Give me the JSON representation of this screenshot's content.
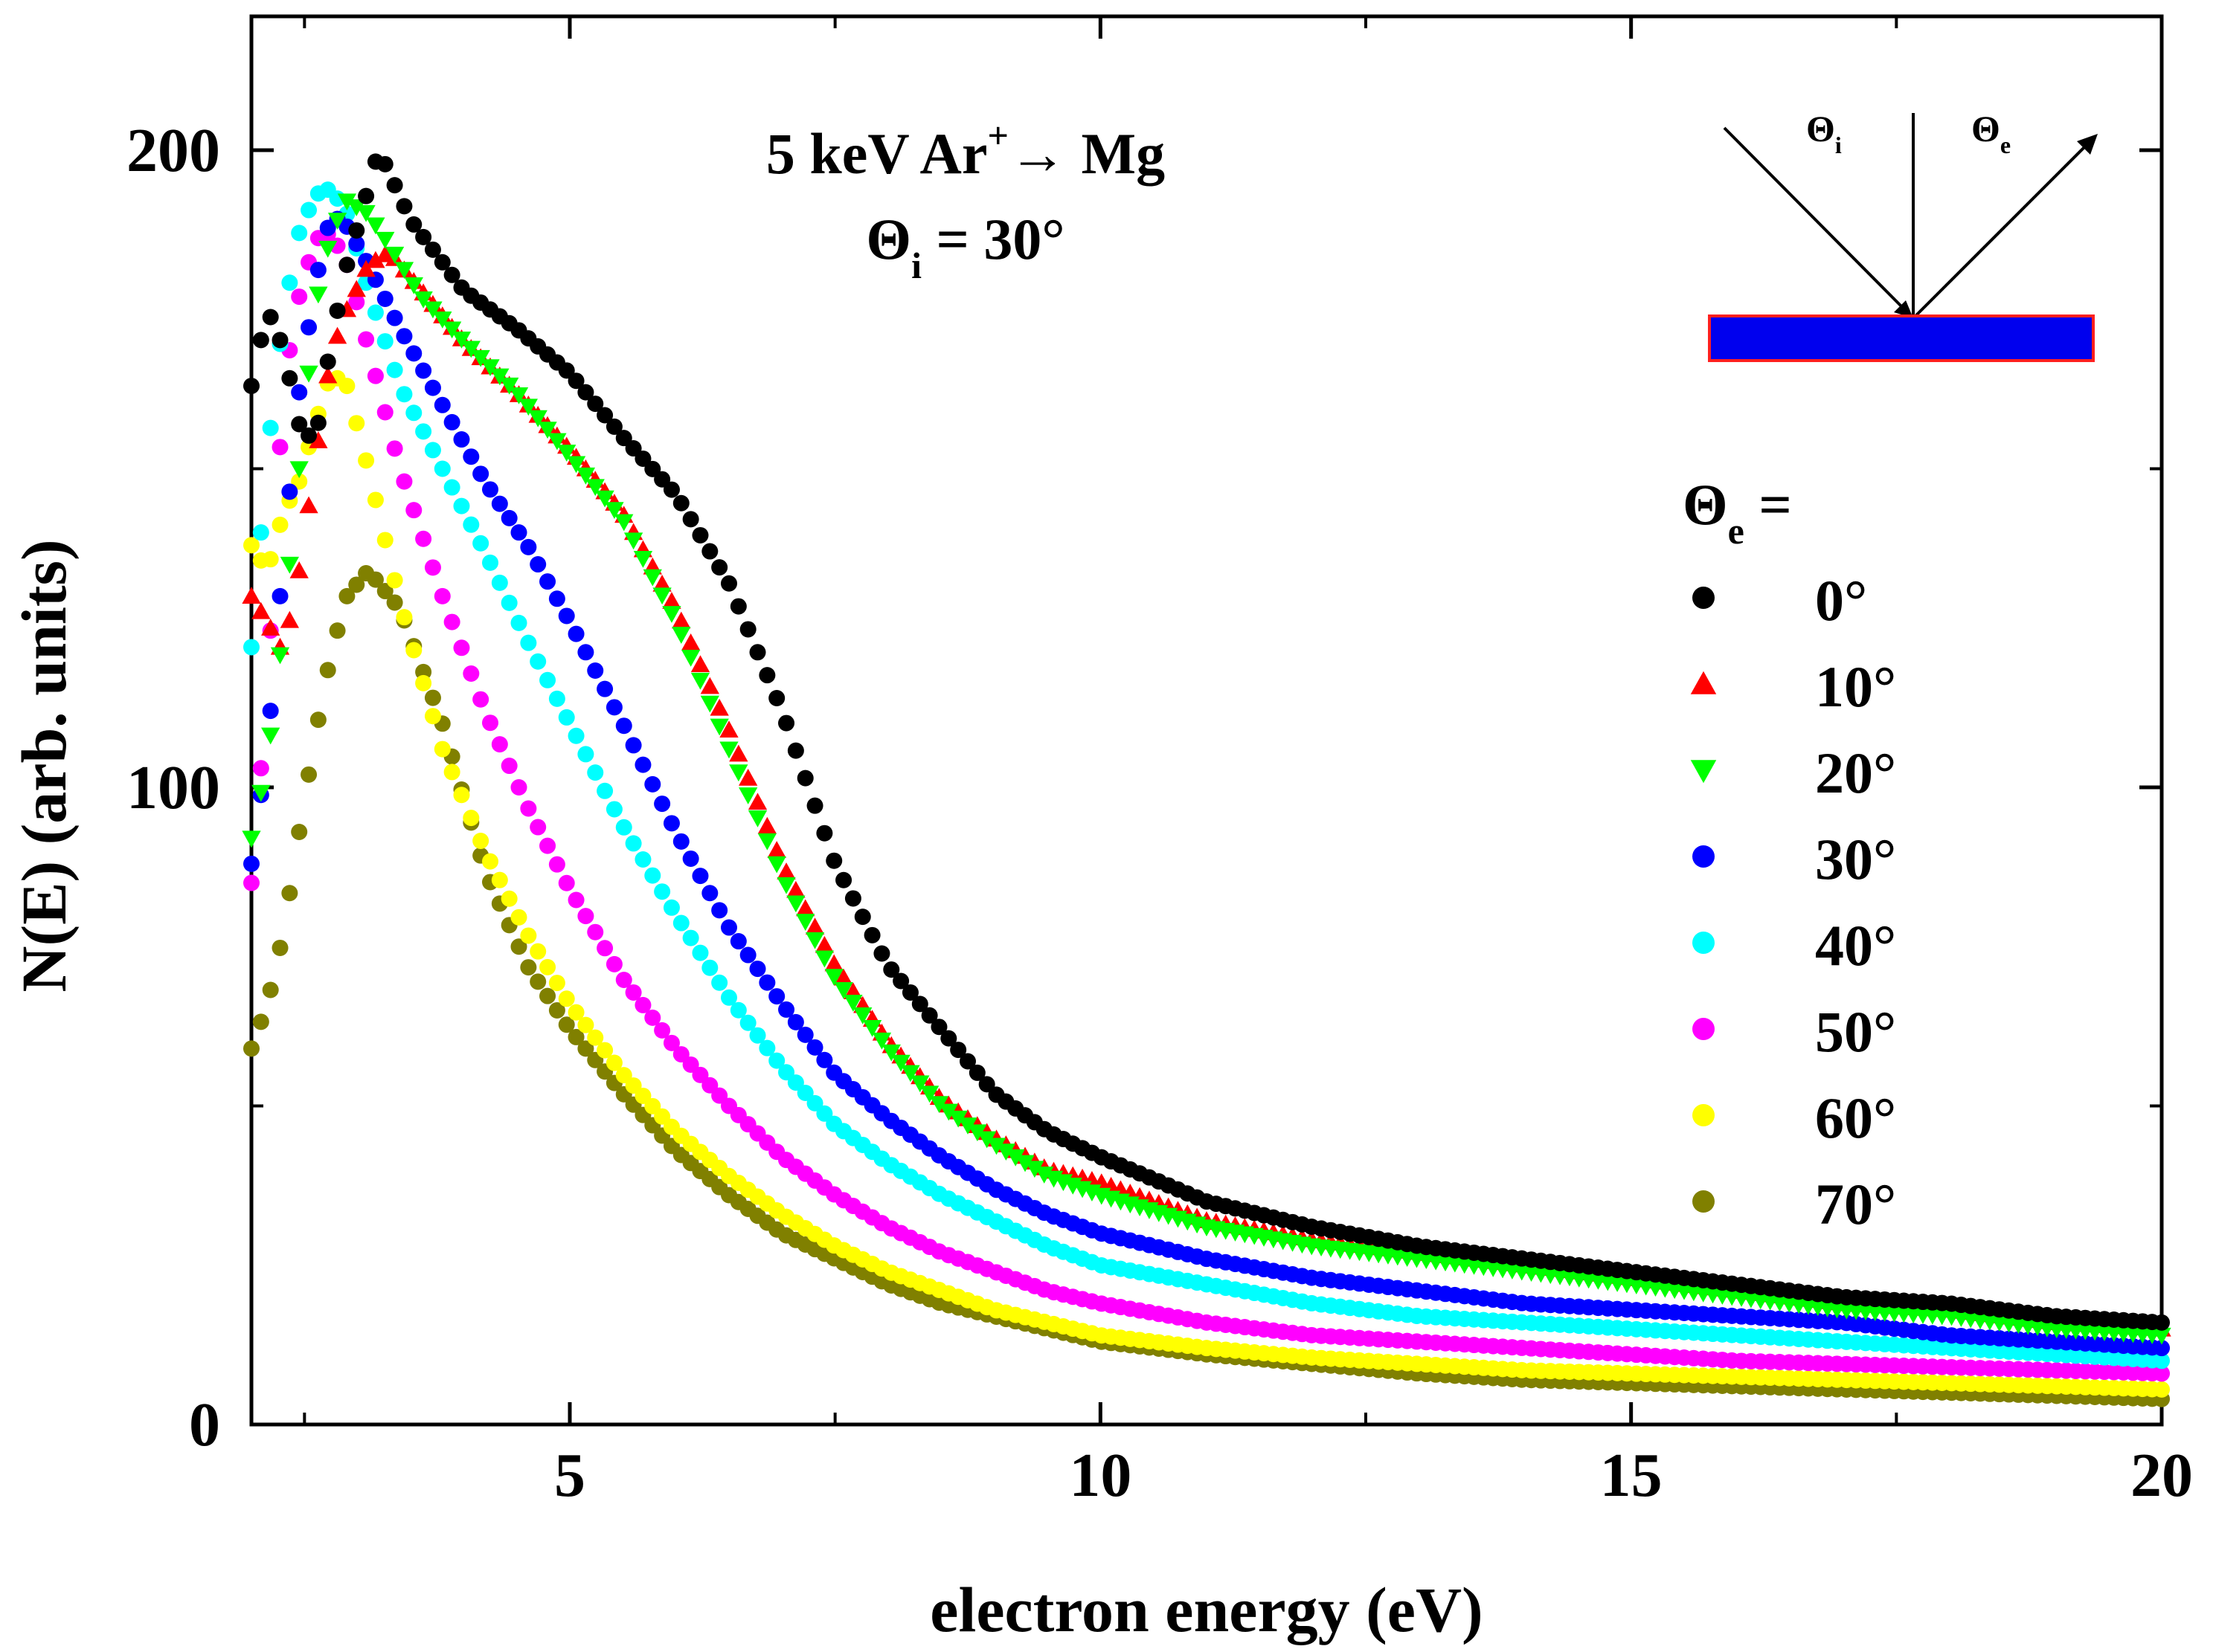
{
  "chart_data": {
    "type": "scatter",
    "title": "",
    "annotation": {
      "line1_pre": "5 keV Ar",
      "line1_sup": "+",
      "line1_post": "→ Mg",
      "line2_sym": "Θ",
      "line2_sub": "i",
      "line2_post": " = 30°"
    },
    "xlabel": "electron energy (eV)",
    "ylabel": "N(E) (arb. units)",
    "xlim": [
      2.0,
      20.0
    ],
    "ylim": [
      0,
      221
    ],
    "x_ticks": [
      5,
      10,
      15,
      20
    ],
    "y_ticks": [
      0,
      100,
      200
    ],
    "x_minor_ticks": [
      2.5,
      7.5,
      12.5,
      17.5
    ],
    "y_minor_ticks": [
      50,
      150
    ],
    "grid": false,
    "legend": {
      "title_sym": "Θ",
      "title_sub": "e",
      "title_post": " =",
      "placement": "right"
    },
    "geometry_inset": {
      "theta_i_sym": "Θ",
      "theta_i_sub": "i",
      "theta_e_sym": "Θ",
      "theta_e_sub": "e",
      "sample_color": "#0000ee",
      "sample_border": "#ff2020"
    },
    "series": [
      {
        "name": "0°",
        "label": "0°",
        "color": "#000000",
        "marker": "circle",
        "x": [
          2.0,
          2.15,
          2.3,
          2.45,
          2.6,
          2.75,
          2.9,
          3.2,
          3.5,
          4.0,
          4.5,
          5.0,
          5.5,
          6.0,
          6.5,
          7.0,
          7.5,
          8.0,
          8.5,
          9.0,
          9.5,
          10.0,
          11.0,
          12.0,
          13.0,
          14.0,
          15.0,
          16.0,
          17.0,
          18.0,
          19.0,
          20.0
        ],
        "y": [
          163,
          175,
          169,
          157,
          154,
          170,
          182,
          200,
          189,
          178,
          172,
          165,
          155,
          146,
          132,
          112,
          88,
          72,
          62,
          52,
          46,
          42,
          35,
          31,
          28,
          26,
          24,
          22,
          20,
          19,
          17,
          16
        ]
      },
      {
        "name": "10°",
        "label": "10°",
        "color": "#ff0000",
        "marker": "triangle-up",
        "x": [
          2.0,
          2.15,
          2.3,
          2.45,
          2.6,
          2.75,
          2.9,
          3.1,
          3.3,
          3.6,
          4.0,
          4.5,
          5.0,
          5.5,
          6.0,
          6.5,
          7.0,
          7.5,
          8.0,
          8.5,
          9.0,
          9.5,
          10.0,
          11.0,
          12.0,
          13.0,
          14.0,
          15.0,
          16.0,
          17.0,
          18.0,
          19.0,
          20.0
        ],
        "y": [
          130,
          126,
          121,
          134,
          151,
          168,
          175,
          182,
          184,
          178,
          170,
          162,
          153,
          143,
          128,
          109,
          88,
          72,
          60,
          51,
          45,
          40,
          38,
          32,
          29,
          27,
          25,
          23,
          21,
          19,
          18,
          16,
          15
        ]
      },
      {
        "name": "20°",
        "label": "20°",
        "color": "#00ff00",
        "marker": "triangle-down",
        "x": [
          2.0,
          2.15,
          2.3,
          2.45,
          2.6,
          2.75,
          2.9,
          3.1,
          3.3,
          3.6,
          4.0,
          4.5,
          5.0,
          5.5,
          6.0,
          6.5,
          7.0,
          7.5,
          8.0,
          8.5,
          9.0,
          9.5,
          10.0,
          11.0,
          12.0,
          13.0,
          14.0,
          15.0,
          16.0,
          17.0,
          18.0,
          19.0,
          20.0
        ],
        "y": [
          92,
          104,
          125,
          150,
          175,
          187,
          192,
          190,
          185,
          177,
          170,
          162,
          152,
          142,
          126,
          106,
          86,
          70,
          59,
          50,
          44,
          39,
          36,
          31,
          28,
          26,
          24,
          22,
          20,
          18,
          17,
          15,
          14
        ]
      },
      {
        "name": "30°",
        "label": "30°",
        "color": "#0000ff",
        "marker": "circle",
        "x": [
          2.0,
          2.15,
          2.3,
          2.45,
          2.6,
          2.75,
          2.9,
          3.1,
          3.4,
          3.8,
          4.2,
          4.6,
          5.0,
          5.5,
          6.0,
          6.5,
          7.0,
          7.5,
          8.0,
          8.5,
          9.0,
          9.5,
          10.0,
          11.0,
          12.0,
          13.0,
          14.0,
          15.0,
          16.0,
          17.0,
          18.0,
          19.0,
          20.0
        ],
        "y": [
          88,
          106,
          136,
          162,
          179,
          190,
          188,
          182,
          172,
          160,
          148,
          138,
          126,
          110,
          93,
          78,
          66,
          55,
          48,
          42,
          37,
          33,
          30,
          26,
          23,
          21,
          19,
          18,
          17,
          16,
          14,
          13,
          12
        ]
      },
      {
        "name": "40°",
        "label": "40°",
        "color": "#00ffff",
        "marker": "circle",
        "x": [
          2.0,
          2.15,
          2.3,
          2.45,
          2.6,
          2.75,
          2.9,
          3.1,
          3.4,
          3.8,
          4.2,
          4.6,
          5.0,
          5.5,
          6.0,
          6.5,
          7.0,
          7.5,
          8.0,
          8.5,
          9.0,
          9.5,
          10.0,
          11.0,
          12.0,
          13.0,
          14.0,
          15.0,
          16.0,
          17.0,
          18.0,
          19.0,
          20.0
        ],
        "y": [
          122,
          152,
          174,
          187,
          193,
          194,
          190,
          178,
          163,
          150,
          137,
          123,
          110,
          94,
          80,
          67,
          56,
          47,
          41,
          36,
          32,
          28,
          25,
          22,
          19,
          17,
          16,
          15,
          14,
          13,
          12,
          11,
          10
        ]
      },
      {
        "name": "50°",
        "label": "50°",
        "color": "#ff00ff",
        "marker": "circle",
        "x": [
          2.0,
          2.15,
          2.3,
          2.45,
          2.6,
          2.75,
          2.9,
          3.1,
          3.4,
          3.8,
          4.2,
          4.6,
          5.0,
          5.5,
          6.0,
          6.5,
          7.0,
          7.5,
          8.0,
          8.5,
          9.0,
          9.5,
          10.0,
          11.0,
          12.0,
          13.0,
          14.0,
          15.0,
          16.0,
          17.0,
          18.0,
          19.0,
          20.0
        ],
        "y": [
          85,
          115,
          163,
          177,
          186,
          187,
          182,
          169,
          150,
          130,
          112,
          97,
          84,
          70,
          59,
          50,
          42,
          36,
          31,
          27,
          24,
          21,
          19,
          16,
          14,
          13,
          12,
          11,
          10,
          9.5,
          9,
          8.5,
          8
        ]
      },
      {
        "name": "60°",
        "label": "60°",
        "color": "#ffff00",
        "marker": "circle",
        "x": [
          2.0,
          2.15,
          2.3,
          2.45,
          2.6,
          2.75,
          2.9,
          3.1,
          3.4,
          3.8,
          4.2,
          4.6,
          5.0,
          5.5,
          6.0,
          6.5,
          7.0,
          7.5,
          8.0,
          8.5,
          9.0,
          9.5,
          10.0,
          11.0,
          12.0,
          13.0,
          14.0,
          15.0,
          16.0,
          17.0,
          18.0,
          19.0,
          20.0
        ],
        "y": [
          138,
          134,
          143,
          148,
          157,
          165,
          163,
          150,
          129,
          106,
          90,
          77,
          66,
          55,
          46,
          39,
          33,
          28,
          24,
          21,
          18,
          16,
          14,
          12,
          10.5,
          9.5,
          8.5,
          8,
          7.5,
          7,
          6.5,
          6,
          5.5
        ]
      },
      {
        "name": "70°",
        "label": "70°",
        "color": "#808000",
        "marker": "circle",
        "x": [
          2.0,
          2.15,
          2.3,
          2.45,
          2.6,
          2.75,
          2.9,
          3.1,
          3.4,
          3.8,
          4.2,
          4.6,
          5.0,
          5.5,
          6.0,
          6.5,
          7.0,
          7.5,
          8.0,
          8.5,
          9.0,
          9.5,
          10.0,
          11.0,
          12.0,
          13.0,
          14.0,
          15.0,
          16.0,
          17.0,
          18.0,
          19.0,
          20.0
        ],
        "y": [
          59,
          66,
          77,
          93,
          108,
          121,
          130,
          134,
          128,
          110,
          87,
          72,
          62,
          52,
          43,
          36,
          30,
          26,
          22,
          19,
          17,
          15,
          13,
          11,
          9.5,
          8,
          7,
          6.5,
          6,
          5.5,
          5,
          4.5,
          4
        ]
      }
    ]
  }
}
